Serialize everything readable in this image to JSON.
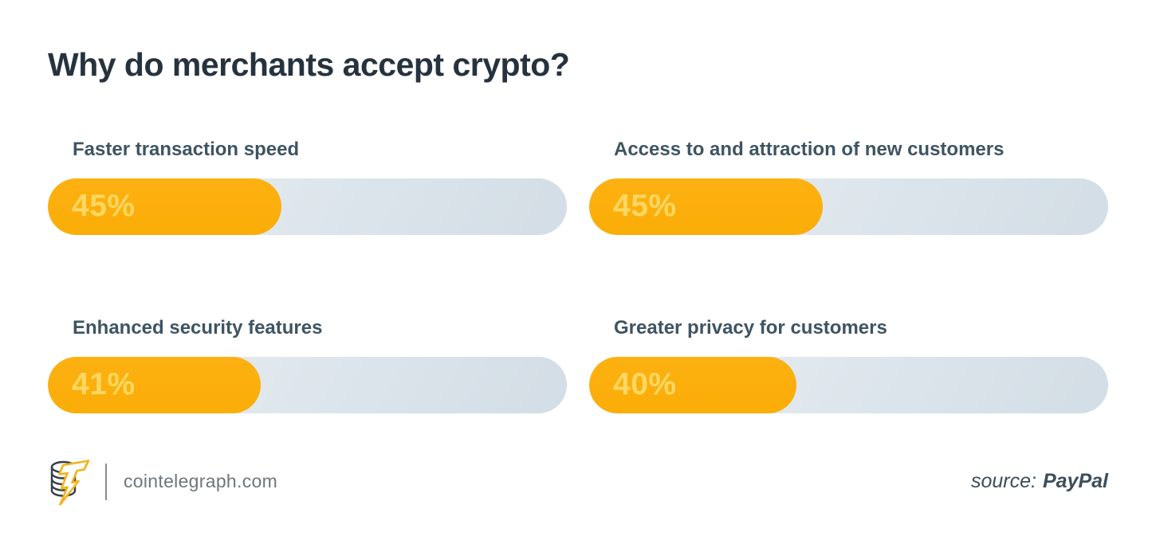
{
  "title": "Why do merchants accept crypto?",
  "chart_data": {
    "type": "bar",
    "title": "Why do merchants accept crypto?",
    "orientation": "horizontal",
    "layout": "2x2 grid of rounded pill progress bars",
    "categories": [
      "Faster transaction speed",
      "Access to and attraction of new customers",
      "Enhanced security features",
      "Greater privacy for customers"
    ],
    "values": [
      45,
      45,
      41,
      40
    ],
    "unit": "%",
    "xlim": [
      0,
      100
    ],
    "value_labels_inside_bar": true,
    "bar_color": "#FBAE0E",
    "track_color": "#DDE5EB",
    "value_label_color": "#FFD761",
    "source": "PayPal"
  },
  "bars": [
    {
      "label": "Faster transaction speed",
      "value": "45%",
      "percent": 45
    },
    {
      "label": "Access to and attraction of new customers",
      "value": "45%",
      "percent": 45
    },
    {
      "label": "Enhanced security features",
      "value": "41%",
      "percent": 41
    },
    {
      "label": "Greater privacy for customers",
      "value": "40%",
      "percent": 40
    }
  ],
  "footer": {
    "site": "cointelegraph.com",
    "source_prefix": "source:",
    "source_name": "PayPal"
  },
  "icons": {
    "logo": "cointelegraph-coin-stack-lightning-t-logo"
  },
  "colors": {
    "background": "#FFFFFF",
    "title_text": "#26333E",
    "label_text": "#3E5462",
    "accent_orange": "#FBAE0E",
    "track_light": "#EBF0F4",
    "track_dark": "#D3DDE5",
    "value_text": "#FFD761",
    "footer_site_text": "#6F767C",
    "footer_divider": "#878D92",
    "source_text": "#3D4D5A",
    "logo_outline": "#343F48",
    "logo_bolt": "#F2B31C"
  }
}
